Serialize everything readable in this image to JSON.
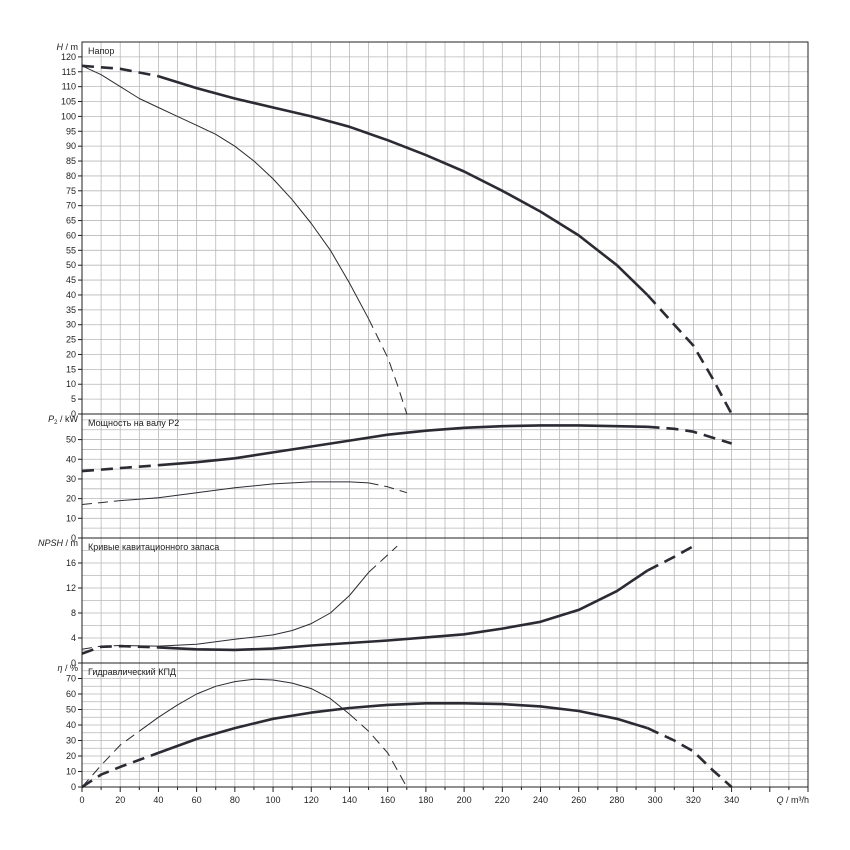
{
  "colors": {
    "background": "#ffffff",
    "grid": "#b8b8b8",
    "frame": "#222222",
    "curve": "#2b2b33"
  },
  "x_axis": {
    "label_var": "Q",
    "label_unit": " / m³/h",
    "ticks": [
      0,
      20,
      40,
      60,
      80,
      100,
      120,
      140,
      160,
      180,
      200,
      220,
      240,
      260,
      280,
      300,
      320,
      340
    ],
    "range": [
      0,
      380
    ],
    "minor_step": 10
  },
  "chart_data": [
    {
      "type": "line",
      "title": "Напор",
      "ylabel_var": "H",
      "ylabel_unit": " / m",
      "ylim": [
        0,
        125
      ],
      "yticks": [
        0,
        5,
        10,
        15,
        20,
        25,
        30,
        35,
        40,
        45,
        50,
        55,
        60,
        65,
        70,
        75,
        80,
        85,
        90,
        95,
        100,
        105,
        110,
        115,
        120
      ],
      "grid_step": 5,
      "series": [
        {
          "style": "thick-solid",
          "points": [
            [
              40,
              113.5
            ],
            [
              60,
              109.5
            ],
            [
              80,
              106
            ],
            [
              100,
              103
            ],
            [
              120,
              100
            ],
            [
              140,
              96.5
            ],
            [
              160,
              92
            ],
            [
              180,
              87
            ],
            [
              200,
              81.5
            ],
            [
              220,
              75
            ],
            [
              240,
              68
            ],
            [
              260,
              60
            ],
            [
              280,
              50
            ],
            [
              296,
              40
            ]
          ]
        },
        {
          "style": "thick-dashed",
          "points": [
            [
              0,
              117
            ],
            [
              20,
              116
            ],
            [
              40,
              113.5
            ]
          ]
        },
        {
          "style": "thick-dashed",
          "points": [
            [
              296,
              40
            ],
            [
              310,
              30
            ],
            [
              320,
              23
            ],
            [
              330,
              12
            ],
            [
              340,
              0
            ]
          ]
        },
        {
          "style": "thin-solid",
          "points": [
            [
              0,
              117
            ],
            [
              10,
              114
            ],
            [
              20,
              110
            ],
            [
              30,
              106
            ],
            [
              40,
              103
            ],
            [
              50,
              100
            ],
            [
              60,
              97
            ],
            [
              70,
              94
            ],
            [
              80,
              90
            ],
            [
              90,
              85
            ],
            [
              100,
              79
            ],
            [
              110,
              72
            ],
            [
              120,
              64
            ],
            [
              130,
              55
            ],
            [
              140,
              44
            ],
            [
              150,
              32
            ]
          ]
        },
        {
          "style": "thin-dashed",
          "points": [
            [
              150,
              32
            ],
            [
              160,
              19
            ],
            [
              165,
              10
            ],
            [
              170,
              0
            ]
          ]
        }
      ]
    },
    {
      "type": "line",
      "title": "Мощность на валу P2",
      "ylabel_var": "P",
      "ylabel_sub": "2",
      "ylabel_unit": " / kW",
      "ylim": [
        0,
        63
      ],
      "yticks": [
        0,
        10,
        20,
        30,
        40,
        50
      ],
      "grid_step": 5,
      "series": [
        {
          "style": "thick-dashed",
          "points": [
            [
              0,
              34
            ],
            [
              20,
              35.5
            ],
            [
              40,
              37
            ]
          ]
        },
        {
          "style": "thick-solid",
          "points": [
            [
              40,
              37
            ],
            [
              60,
              38.5
            ],
            [
              80,
              40.5
            ],
            [
              100,
              43.5
            ],
            [
              120,
              46.5
            ],
            [
              140,
              49.5
            ],
            [
              160,
              52.5
            ],
            [
              180,
              54.5
            ],
            [
              200,
              56
            ],
            [
              220,
              56.8
            ],
            [
              240,
              57.2
            ],
            [
              260,
              57.2
            ],
            [
              280,
              56.8
            ],
            [
              296,
              56.5
            ]
          ]
        },
        {
          "style": "thick-dashed",
          "points": [
            [
              296,
              56.5
            ],
            [
              310,
              55.5
            ],
            [
              320,
              54
            ],
            [
              330,
              51
            ],
            [
              340,
              48
            ]
          ]
        },
        {
          "style": "thin-dashed",
          "points": [
            [
              0,
              17
            ],
            [
              10,
              18
            ],
            [
              20,
              19
            ]
          ]
        },
        {
          "style": "thin-solid",
          "points": [
            [
              20,
              19
            ],
            [
              40,
              20.5
            ],
            [
              60,
              23
            ],
            [
              80,
              25.5
            ],
            [
              100,
              27.5
            ],
            [
              120,
              28.5
            ],
            [
              140,
              28.5
            ],
            [
              150,
              28
            ]
          ]
        },
        {
          "style": "thin-dashed",
          "points": [
            [
              150,
              28
            ],
            [
              160,
              26
            ],
            [
              170,
              23
            ]
          ]
        }
      ]
    },
    {
      "type": "line",
      "title": "Кривые кавитационного запаса",
      "ylabel_var": "NPSH",
      "ylabel_unit": " / m",
      "ylim": [
        0,
        20
      ],
      "yticks": [
        0,
        4,
        8,
        12,
        16
      ],
      "grid_step": 2,
      "series": [
        {
          "style": "thick-dashed",
          "points": [
            [
              0,
              1.5
            ],
            [
              10,
              2.6
            ],
            [
              20,
              2.7
            ],
            [
              40,
              2.5
            ]
          ]
        },
        {
          "style": "thick-solid",
          "points": [
            [
              40,
              2.5
            ],
            [
              60,
              2.2
            ],
            [
              80,
              2.1
            ],
            [
              100,
              2.3
            ],
            [
              120,
              2.8
            ],
            [
              140,
              3.2
            ],
            [
              160,
              3.6
            ],
            [
              180,
              4.1
            ],
            [
              200,
              4.6
            ],
            [
              220,
              5.5
            ],
            [
              240,
              6.6
            ],
            [
              260,
              8.5
            ],
            [
              280,
              11.5
            ],
            [
              296,
              14.8
            ]
          ]
        },
        {
          "style": "thick-dashed",
          "points": [
            [
              296,
              14.8
            ],
            [
              310,
              17
            ],
            [
              320,
              18.7
            ]
          ]
        },
        {
          "style": "thin-dashed",
          "points": [
            [
              0,
              2.2
            ],
            [
              10,
              2.7
            ],
            [
              20,
              2.8
            ]
          ]
        },
        {
          "style": "thin-solid",
          "points": [
            [
              20,
              2.8
            ],
            [
              40,
              2.7
            ],
            [
              60,
              3
            ],
            [
              80,
              3.8
            ],
            [
              100,
              4.5
            ],
            [
              110,
              5.2
            ],
            [
              120,
              6.3
            ],
            [
              130,
              8
            ],
            [
              140,
              10.8
            ],
            [
              150,
              14.5
            ]
          ]
        },
        {
          "style": "thin-dashed",
          "points": [
            [
              150,
              14.5
            ],
            [
              160,
              17.3
            ],
            [
              165,
              18.7
            ]
          ]
        }
      ]
    },
    {
      "type": "line",
      "title": "Гидравлический КПД",
      "ylabel_var": "η",
      "ylabel_unit": " / %",
      "ylim": [
        0,
        80
      ],
      "yticks": [
        0,
        10,
        20,
        30,
        40,
        50,
        60,
        70
      ],
      "grid_step": 5,
      "series": [
        {
          "style": "thick-dashed",
          "points": [
            [
              0,
              0
            ],
            [
              10,
              8
            ],
            [
              20,
              13
            ],
            [
              40,
              22
            ]
          ]
        },
        {
          "style": "thick-solid",
          "points": [
            [
              40,
              22
            ],
            [
              60,
              31
            ],
            [
              80,
              38
            ],
            [
              100,
              44
            ],
            [
              120,
              48
            ],
            [
              140,
              51
            ],
            [
              160,
              53
            ],
            [
              180,
              54
            ],
            [
              200,
              54
            ],
            [
              220,
              53.5
            ],
            [
              240,
              52
            ],
            [
              260,
              49
            ],
            [
              280,
              44
            ],
            [
              296,
              38
            ]
          ]
        },
        {
          "style": "thick-dashed",
          "points": [
            [
              296,
              38
            ],
            [
              310,
              30
            ],
            [
              320,
              23
            ],
            [
              330,
              11
            ],
            [
              340,
              0
            ]
          ]
        },
        {
          "style": "thin-dashed",
          "points": [
            [
              0,
              0
            ],
            [
              10,
              14
            ],
            [
              20,
              27
            ],
            [
              30,
              36
            ]
          ]
        },
        {
          "style": "thin-solid",
          "points": [
            [
              30,
              36
            ],
            [
              40,
              45
            ],
            [
              50,
              53
            ],
            [
              60,
              60
            ],
            [
              70,
              65
            ],
            [
              80,
              68
            ],
            [
              90,
              69.5
            ],
            [
              100,
              69
            ],
            [
              110,
              67
            ],
            [
              120,
              63.5
            ],
            [
              130,
              57
            ],
            [
              140,
              47
            ]
          ]
        },
        {
          "style": "thin-dashed",
          "points": [
            [
              140,
              47
            ],
            [
              150,
              36
            ],
            [
              160,
              22
            ],
            [
              170,
              0
            ]
          ]
        }
      ]
    }
  ]
}
